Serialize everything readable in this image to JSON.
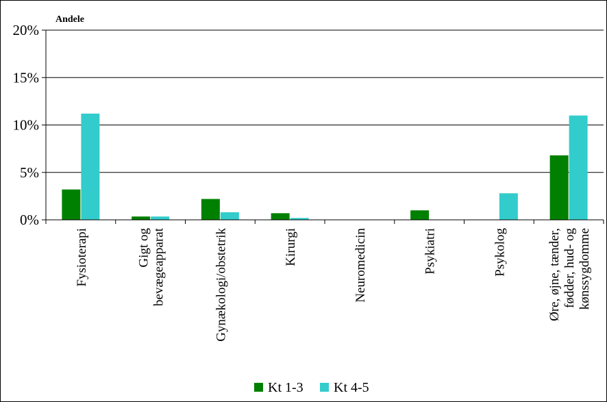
{
  "chart_data": {
    "type": "bar",
    "ylabel": "Andele",
    "categories": [
      [
        "Fysioterapi"
      ],
      [
        "Gigt og",
        "bevægeapparat"
      ],
      [
        "Gynækologi/obstetrik"
      ],
      [
        "Kirurgi"
      ],
      [
        "Neuromedicin"
      ],
      [
        "Psykiatri"
      ],
      [
        "Psykolog"
      ],
      [
        "Øre, øjne, tænder,",
        "fødder, hud- og",
        "kønssygdomme"
      ]
    ],
    "series": [
      {
        "name": "Kt 1-3",
        "color": "#008000",
        "values": [
          3.2,
          0.35,
          2.2,
          0.7,
          0,
          1.0,
          0,
          6.8
        ]
      },
      {
        "name": "Kt 4-5",
        "color": "#33CCCC",
        "values": [
          11.2,
          0.35,
          0.8,
          0.2,
          0,
          0,
          2.8,
          11.0
        ]
      }
    ],
    "ylim": [
      0,
      20
    ],
    "yticks": [
      "0%",
      "5%",
      "10%",
      "15%",
      "20%"
    ],
    "grid": true,
    "legend_position": "bottom"
  }
}
